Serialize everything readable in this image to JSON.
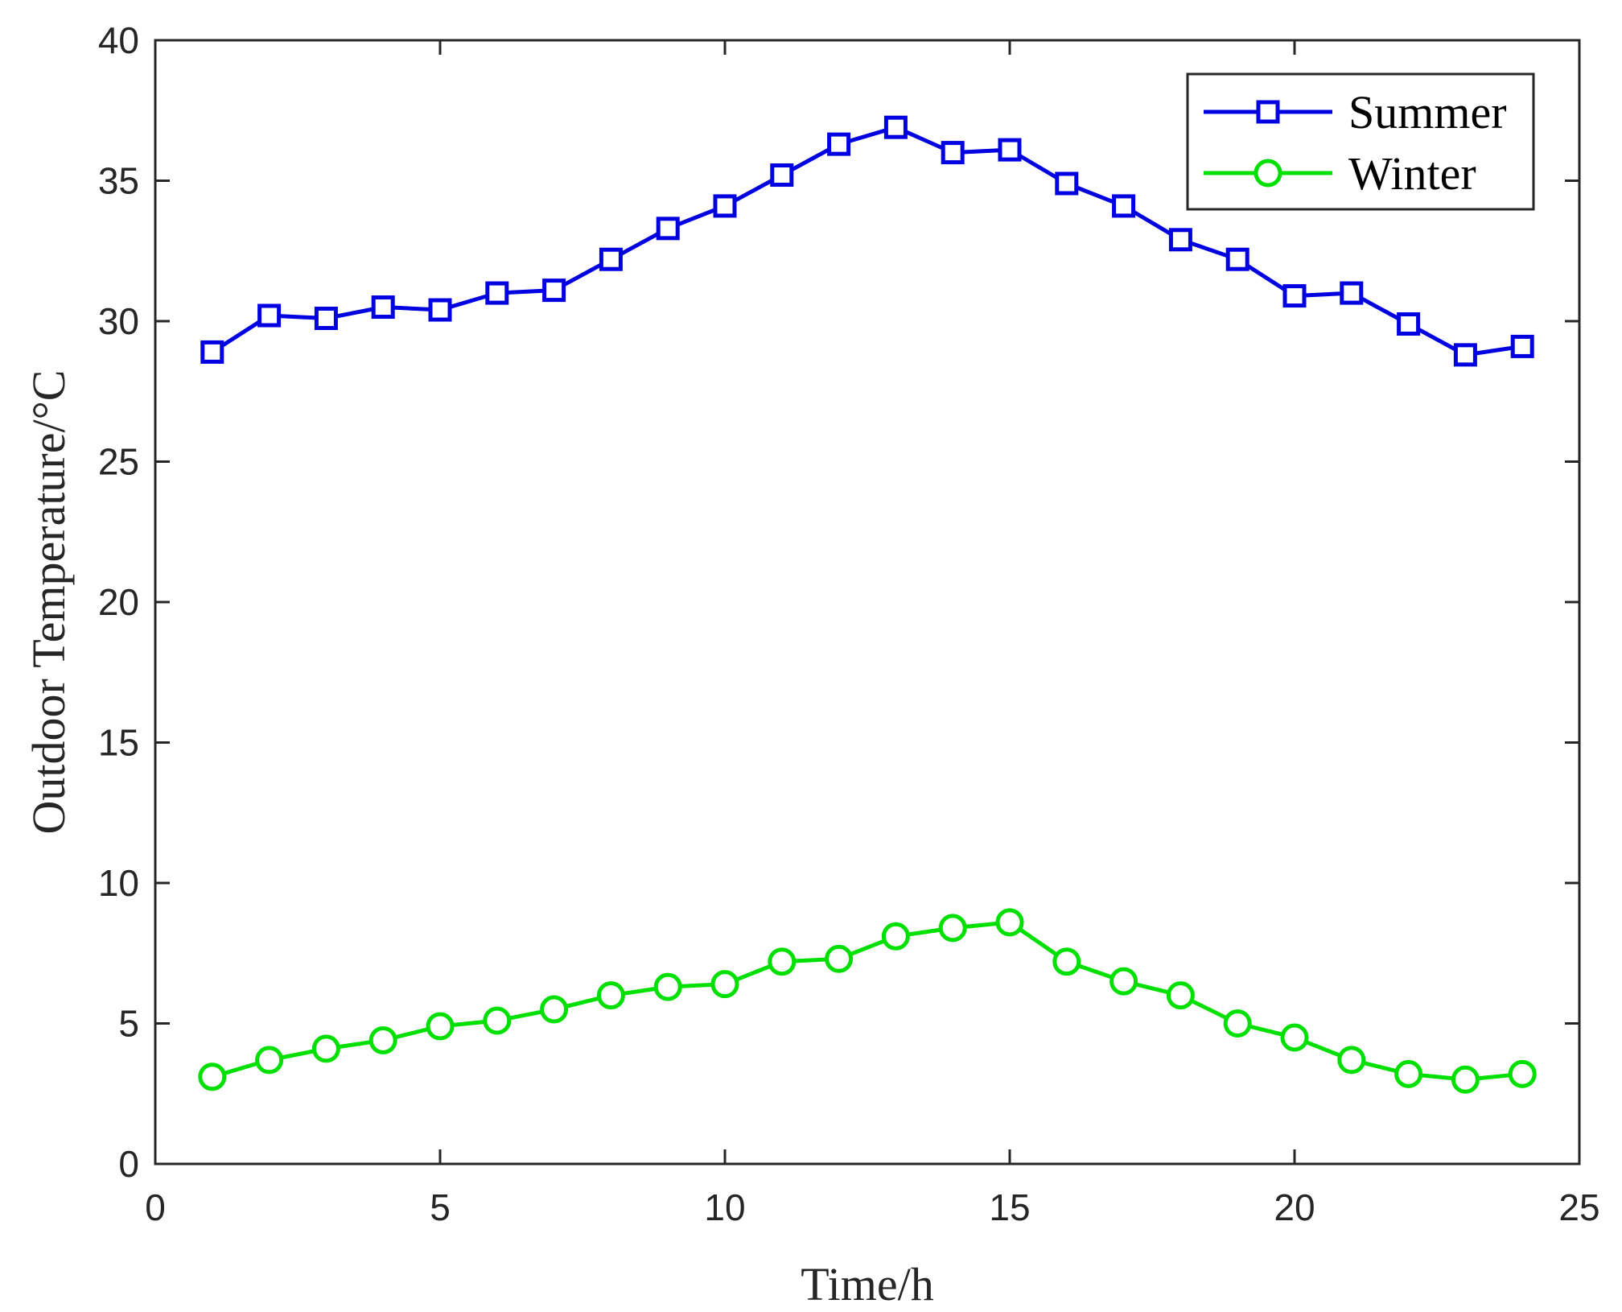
{
  "chart_data": {
    "type": "line",
    "title": "",
    "xlabel": "Time/h",
    "ylabel": "Outdoor Temperature/°C",
    "xlim": [
      0,
      25
    ],
    "ylim": [
      0,
      40
    ],
    "xticks": [
      0,
      5,
      10,
      15,
      20,
      25
    ],
    "yticks": [
      0,
      5,
      10,
      15,
      20,
      25,
      30,
      35,
      40
    ],
    "grid": false,
    "legend_position": "top-right",
    "x": [
      1,
      2,
      3,
      4,
      5,
      6,
      7,
      8,
      9,
      10,
      11,
      12,
      13,
      14,
      15,
      16,
      17,
      18,
      19,
      20,
      21,
      22,
      23,
      24
    ],
    "series": [
      {
        "name": "Summer",
        "color": "#0000e0",
        "marker": "square",
        "values": [
          28.9,
          30.2,
          30.1,
          30.5,
          30.4,
          31.0,
          31.1,
          32.2,
          33.3,
          34.1,
          35.2,
          36.3,
          36.9,
          36.0,
          36.1,
          34.9,
          34.1,
          32.9,
          32.2,
          30.9,
          31.0,
          29.9,
          28.8,
          29.1
        ]
      },
      {
        "name": "Winter",
        "color": "#00e000",
        "marker": "circle",
        "values": [
          3.1,
          3.7,
          4.1,
          4.4,
          4.9,
          5.1,
          5.5,
          6.0,
          6.3,
          6.4,
          7.2,
          7.3,
          8.1,
          8.4,
          8.6,
          7.2,
          6.5,
          6.0,
          5.0,
          4.5,
          3.7,
          3.2,
          3.0,
          3.2
        ]
      }
    ]
  }
}
